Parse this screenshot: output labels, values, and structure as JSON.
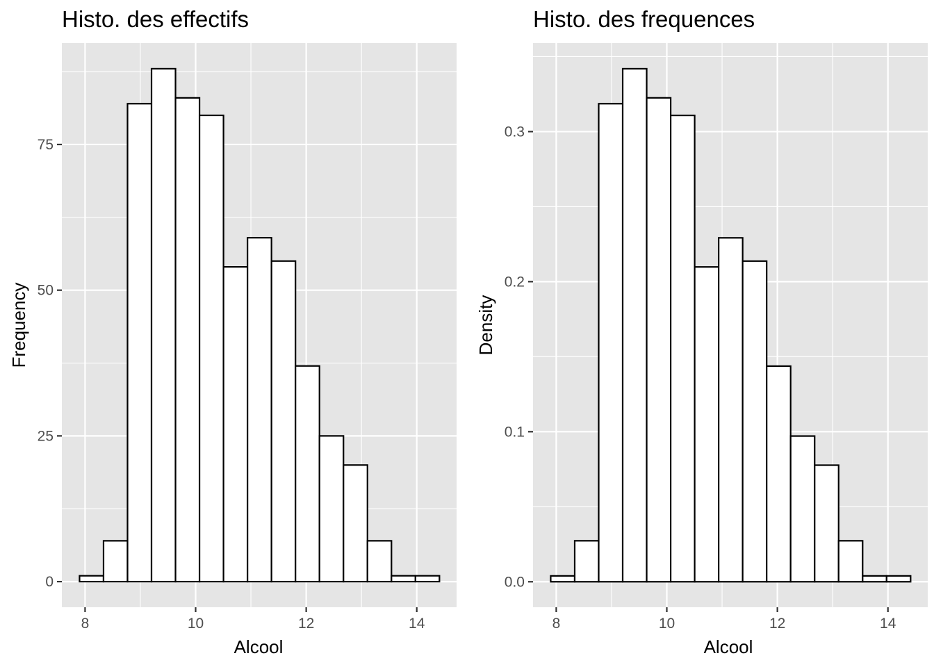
{
  "chart_data": [
    {
      "type": "bar",
      "title": "Histo. des effectifs",
      "xlabel": "Alcool",
      "ylabel": "Frequency",
      "bin_start": 7.9,
      "bin_width": 0.434,
      "values": [
        1,
        7,
        82,
        88,
        83,
        80,
        54,
        59,
        55,
        37,
        25,
        20,
        7,
        1,
        1
      ],
      "xlim": [
        7.58,
        14.72
      ],
      "ylim": [
        -4.4,
        92.4
      ],
      "x_ticks": [
        8,
        10,
        12,
        14
      ],
      "x_tick_labels": [
        "8",
        "10",
        "12",
        "14"
      ],
      "y_ticks": [
        0,
        25,
        50,
        75
      ],
      "y_tick_labels": [
        "0",
        "25",
        "50",
        "75"
      ],
      "grid": true,
      "panel_color": "#e5e5e5",
      "bar_fill": "#ffffff",
      "bar_stroke": "#000000"
    },
    {
      "type": "bar",
      "title": "Histo. des frequences",
      "xlabel": "Alcool",
      "ylabel": "Density",
      "bin_start": 7.9,
      "bin_width": 0.434,
      "values": [
        0.0039,
        0.0273,
        0.3186,
        0.3419,
        0.3225,
        0.3108,
        0.2098,
        0.2292,
        0.2137,
        0.1437,
        0.0971,
        0.0777,
        0.0273,
        0.0039,
        0.0039
      ],
      "xlim": [
        7.58,
        14.72
      ],
      "ylim": [
        -0.017,
        0.359
      ],
      "x_ticks": [
        8,
        10,
        12,
        14
      ],
      "x_tick_labels": [
        "8",
        "10",
        "12",
        "14"
      ],
      "y_ticks": [
        0,
        0.1,
        0.2,
        0.3
      ],
      "y_tick_labels": [
        "0.0",
        "0.1",
        "0.2",
        "0.3"
      ],
      "grid": true,
      "panel_color": "#e5e5e5",
      "bar_fill": "#ffffff",
      "bar_stroke": "#000000"
    }
  ]
}
